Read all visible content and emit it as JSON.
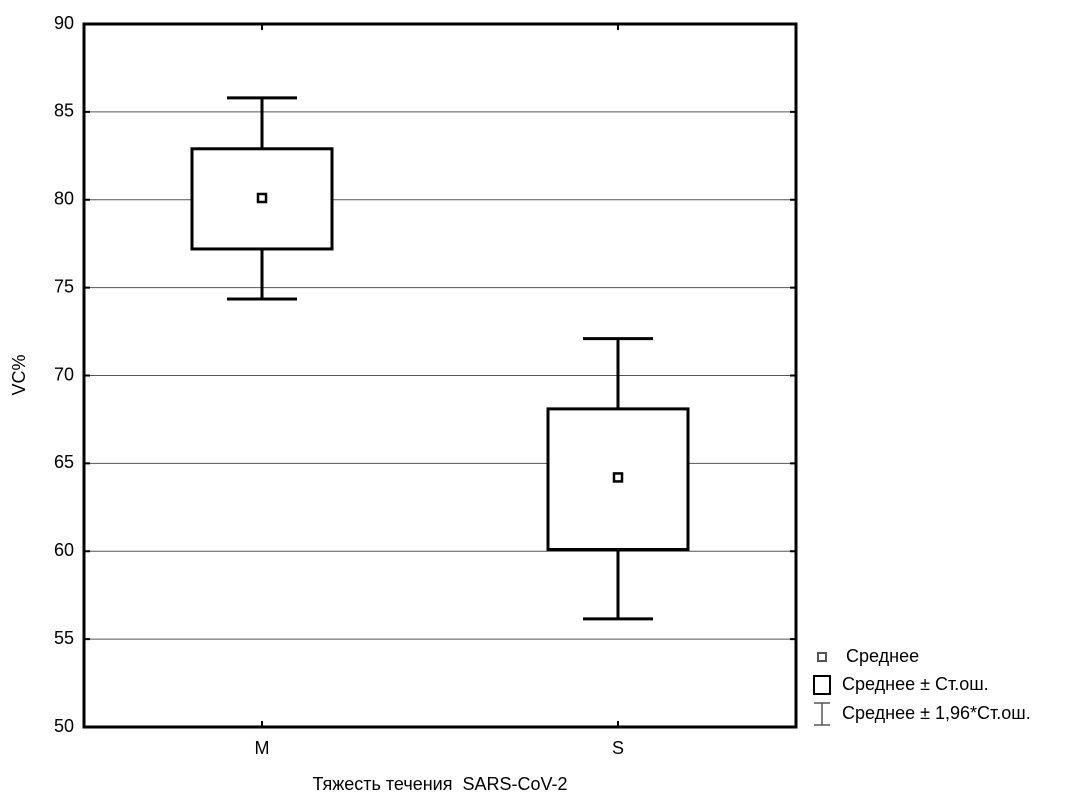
{
  "chart_data": {
    "type": "box",
    "x_label": "Тяжесть течения  SARS-CoV-2",
    "y_label": "VC%",
    "categories": [
      "M",
      "S"
    ],
    "series": [
      {
        "name": "Среднее",
        "color": "#000000",
        "values": [
          80.1,
          64.2
        ]
      },
      {
        "name": "Среднее ± Ст.ош.",
        "color": "#000000",
        "low": [
          77.2,
          60.1
        ],
        "high": [
          82.9,
          68.1
        ]
      },
      {
        "name": "Среднее ± 1,96*Ст.ош.",
        "color": "#000000",
        "low": [
          74.35,
          56.15
        ],
        "high": [
          85.8,
          72.1
        ]
      }
    ],
    "ylim": [
      50,
      90
    ],
    "yticks": [
      50,
      55,
      60,
      65,
      70,
      75,
      80,
      85,
      90
    ],
    "grid": true
  }
}
